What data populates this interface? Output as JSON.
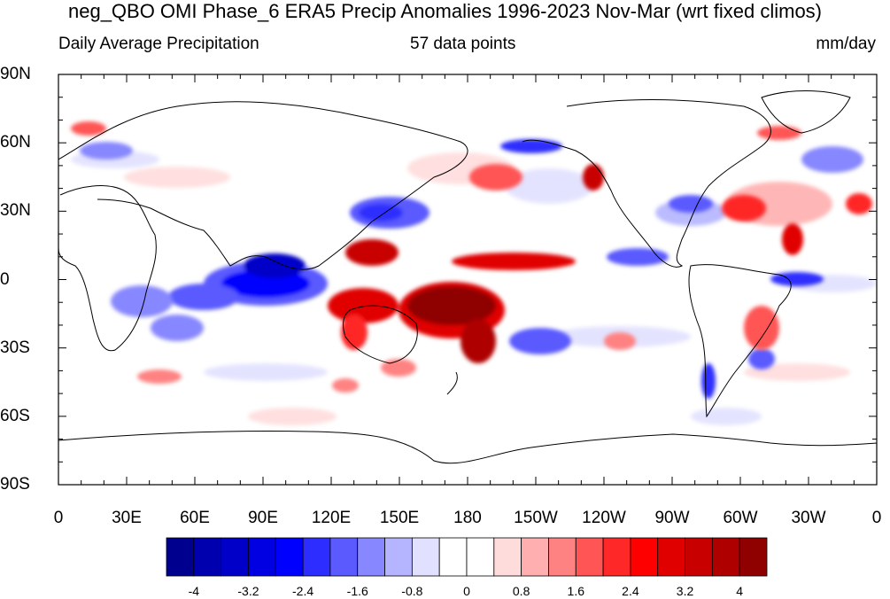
{
  "title": "neg_QBO OMI Phase_6 ERA5 Precip Anomalies 1996-2023 Nov-Mar (wrt fixed climos)",
  "subtitle": {
    "left": "Daily Average Precipitation",
    "center": "57 data points",
    "right": "mm/day"
  },
  "lat_labels": [
    "90N",
    "60N",
    "30N",
    "0",
    "30S",
    "60S",
    "90S"
  ],
  "lon_labels": [
    "0",
    "30E",
    "60E",
    "90E",
    "120E",
    "150E",
    "180",
    "150W",
    "120W",
    "90W",
    "60W",
    "30W",
    "0"
  ],
  "colorbar": {
    "colors": [
      "#00008f",
      "#0000af",
      "#0000c8",
      "#0000e3",
      "#0000ff",
      "#2d2dff",
      "#5a5aff",
      "#8787ff",
      "#b4b4ff",
      "#e1e1ff",
      "#ffffff",
      "#ffffff",
      "#ffdcdc",
      "#ffafaf",
      "#ff8282",
      "#ff5555",
      "#ff2828",
      "#ff0000",
      "#e10000",
      "#c80000",
      "#af0000",
      "#8f0000"
    ],
    "tick_labels": [
      "-4",
      "-3.2",
      "-2.4",
      "-1.6",
      "-0.8",
      "0",
      "0.8",
      "1.6",
      "2.4",
      "3.2",
      "4"
    ]
  },
  "colors": {
    "negative": "#0000ff",
    "positive": "#c80000",
    "coast": "#000000"
  }
}
